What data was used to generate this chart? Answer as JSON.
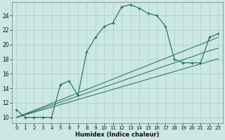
{
  "xlabel": "Humidex (Indice chaleur)",
  "ylabel": "",
  "bg_color": "#cce8e2",
  "grid_color": "#aaccca",
  "line_color": "#1a6b60",
  "xlim": [
    -0.5,
    23.5
  ],
  "ylim": [
    9.2,
    25.8
  ],
  "yticks": [
    10,
    12,
    14,
    16,
    18,
    20,
    22,
    24
  ],
  "xticks": [
    0,
    1,
    2,
    3,
    4,
    5,
    6,
    7,
    8,
    9,
    10,
    11,
    12,
    13,
    14,
    15,
    16,
    17,
    18,
    19,
    20,
    21,
    22,
    23
  ],
  "main_y": [
    11,
    10,
    10,
    10,
    10,
    14.5,
    15,
    13,
    19,
    21,
    22.5,
    23,
    25.2,
    25.5,
    25.0,
    24.3,
    24,
    22.5,
    18,
    17.5,
    17.5,
    17.5,
    21,
    21.5
  ],
  "line1_y": [
    10,
    10.35,
    10.7,
    11.05,
    11.4,
    11.75,
    12.1,
    12.45,
    12.8,
    13.15,
    13.5,
    13.85,
    14.2,
    14.55,
    14.9,
    15.25,
    15.6,
    15.95,
    16.3,
    16.65,
    17.0,
    17.35,
    17.7,
    18.05
  ],
  "line2_y": [
    10,
    10.42,
    10.83,
    11.25,
    11.67,
    12.08,
    12.5,
    12.92,
    13.33,
    13.75,
    14.17,
    14.58,
    15.0,
    15.42,
    15.83,
    16.25,
    16.67,
    17.08,
    17.5,
    17.92,
    18.33,
    18.75,
    19.17,
    19.5
  ],
  "line3_y": [
    10,
    10.48,
    10.96,
    11.43,
    11.91,
    12.39,
    12.87,
    13.35,
    13.83,
    14.3,
    14.78,
    15.26,
    15.74,
    16.22,
    16.7,
    17.17,
    17.65,
    18.13,
    18.61,
    19.09,
    19.57,
    20.04,
    20.52,
    21.0
  ]
}
